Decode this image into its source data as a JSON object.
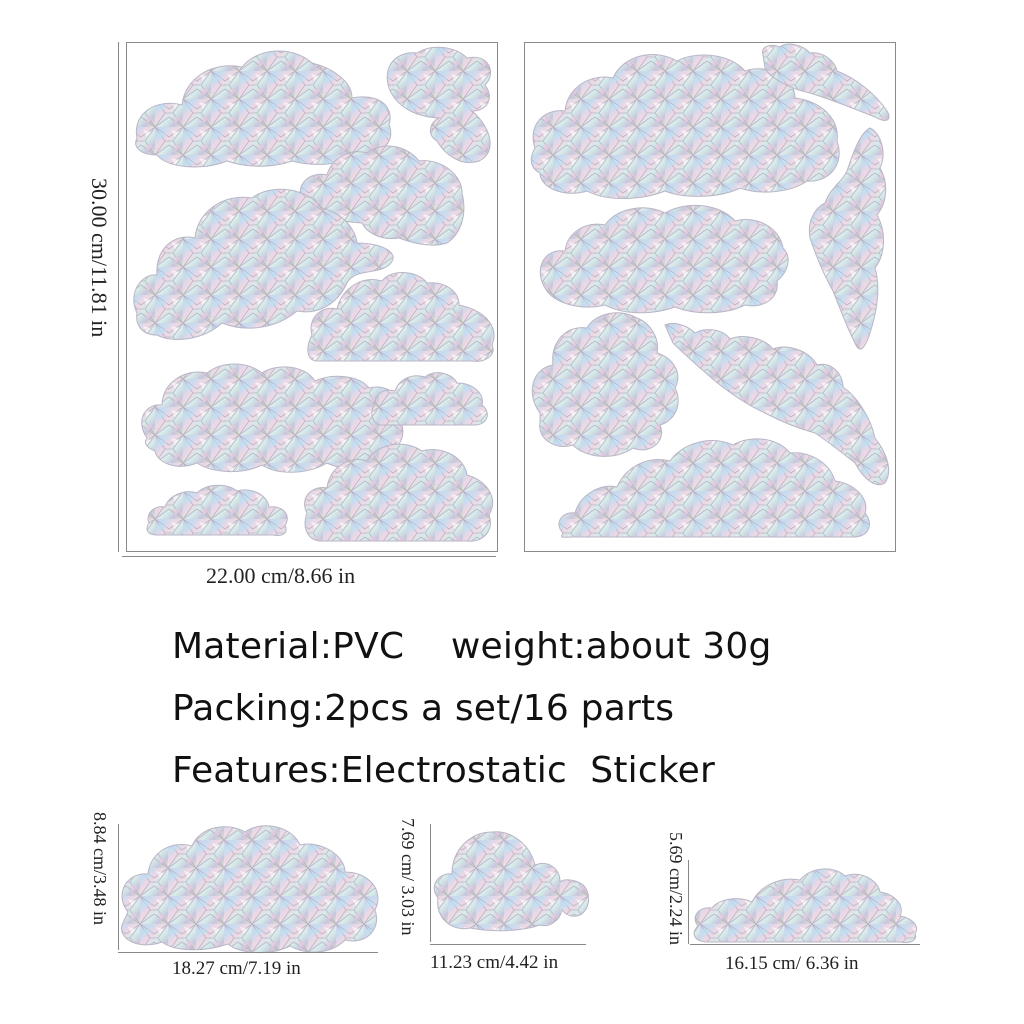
{
  "dimensions": {
    "sheet_height": "30.00 cm/11.81 in",
    "sheet_width": "22.00 cm/8.66 in"
  },
  "specs": {
    "material_line": "Material:PVC    weight:about 30g",
    "packing_line": "Packing:2pcs a set/16 parts",
    "features_line": "Features:Electrostatic  Sticker"
  },
  "samples": [
    {
      "height": "8.84 cm/3.48 in",
      "width": "18.27 cm/7.19 in"
    },
    {
      "height": "7.69 cm/ 3.03 in",
      "width": "11.23 cm/4.42 in"
    },
    {
      "height": "5.69 cm/2.24 in",
      "width": "16.15 cm/ 6.36 in"
    }
  ],
  "colors": {
    "sticker_tones": [
      "#d9d6e8",
      "#c6d9ee",
      "#f2d6e2",
      "#e6e2cf",
      "#bfc5d8",
      "#d8ecef"
    ],
    "border": "#8a8a8a"
  }
}
